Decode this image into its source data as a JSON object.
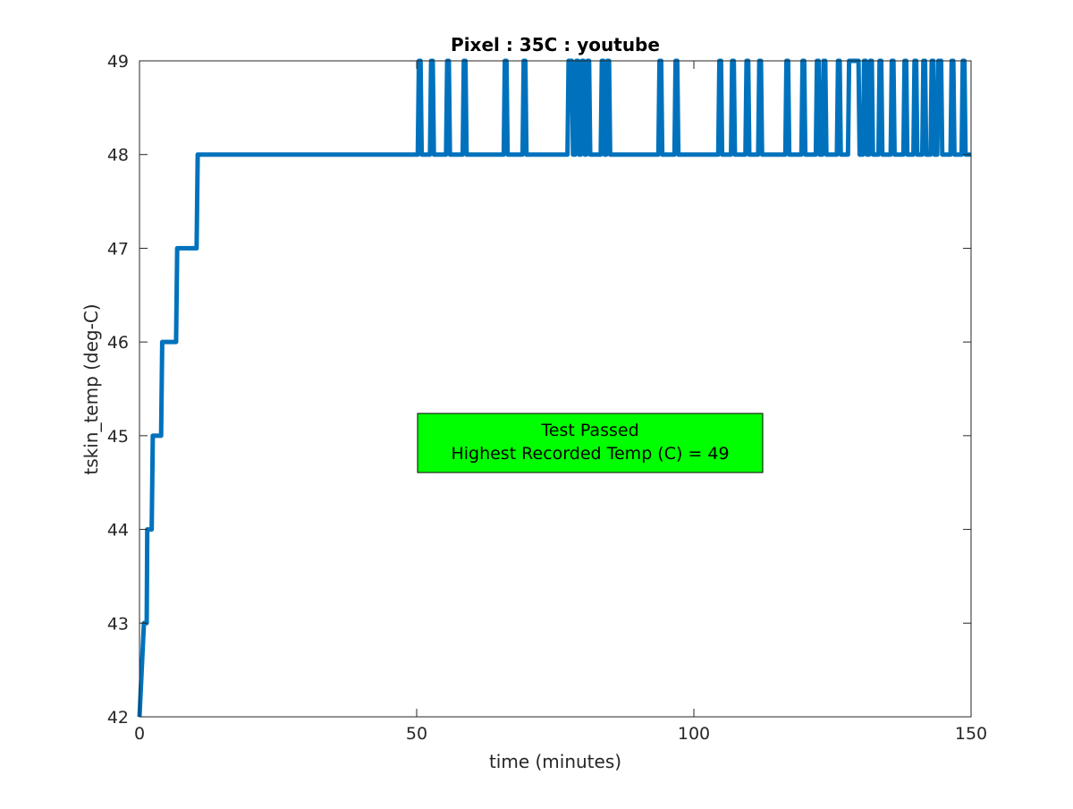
{
  "chart_data": {
    "type": "line",
    "title": "Pixel : 35C : youtube",
    "xlabel": "time (minutes)",
    "ylabel": "tskin_temp (deg-C)",
    "xlim": [
      0,
      150
    ],
    "ylim": [
      42,
      49
    ],
    "xticks": [
      0,
      50,
      100,
      150
    ],
    "yticks": [
      42,
      43,
      44,
      45,
      46,
      47,
      48,
      49
    ],
    "grid": false,
    "legend": "none",
    "series": [
      {
        "color": "#0072BD",
        "points": [
          [
            0,
            42
          ],
          [
            0.8,
            43
          ],
          [
            1.3,
            43
          ],
          [
            1.4,
            44
          ],
          [
            2.2,
            44
          ],
          [
            2.4,
            45
          ],
          [
            3.9,
            45
          ],
          [
            4.1,
            46
          ],
          [
            6.6,
            46
          ],
          [
            6.8,
            47
          ],
          [
            10.3,
            47
          ],
          [
            10.5,
            48
          ],
          [
            50.2,
            48
          ],
          [
            50.4,
            49
          ],
          [
            50.7,
            49
          ],
          [
            50.9,
            48
          ],
          [
            52.4,
            48
          ],
          [
            52.6,
            49
          ],
          [
            52.9,
            49
          ],
          [
            53.1,
            48
          ],
          [
            55.3,
            48
          ],
          [
            55.5,
            49
          ],
          [
            55.8,
            49
          ],
          [
            56.0,
            48
          ],
          [
            58.3,
            48
          ],
          [
            58.5,
            49
          ],
          [
            58.8,
            49
          ],
          [
            59.0,
            48
          ],
          [
            65.7,
            48
          ],
          [
            65.9,
            49
          ],
          [
            66.2,
            49
          ],
          [
            66.4,
            48
          ],
          [
            69.1,
            48
          ],
          [
            69.3,
            49
          ],
          [
            69.6,
            49
          ],
          [
            69.8,
            48
          ],
          [
            77.2,
            48
          ],
          [
            77.4,
            49
          ],
          [
            78.0,
            49
          ],
          [
            78.2,
            48
          ],
          [
            78.6,
            48
          ],
          [
            78.8,
            49
          ],
          [
            79.1,
            49
          ],
          [
            79.3,
            48
          ],
          [
            79.6,
            48
          ],
          [
            79.8,
            49
          ],
          [
            80.1,
            49
          ],
          [
            80.3,
            48
          ],
          [
            80.6,
            48
          ],
          [
            80.8,
            49
          ],
          [
            81.1,
            49
          ],
          [
            81.3,
            48
          ],
          [
            83.2,
            48
          ],
          [
            83.4,
            49
          ],
          [
            83.7,
            49
          ],
          [
            83.9,
            48
          ],
          [
            84.2,
            48
          ],
          [
            84.4,
            49
          ],
          [
            84.7,
            49
          ],
          [
            84.9,
            48
          ],
          [
            93.6,
            48
          ],
          [
            93.8,
            49
          ],
          [
            94.1,
            49
          ],
          [
            94.3,
            48
          ],
          [
            96.5,
            48
          ],
          [
            96.7,
            49
          ],
          [
            97.0,
            49
          ],
          [
            97.2,
            48
          ],
          [
            104.4,
            48
          ],
          [
            104.6,
            49
          ],
          [
            104.9,
            49
          ],
          [
            105.1,
            48
          ],
          [
            106.7,
            48
          ],
          [
            106.9,
            49
          ],
          [
            107.2,
            49
          ],
          [
            107.4,
            48
          ],
          [
            109.3,
            48
          ],
          [
            109.5,
            49
          ],
          [
            109.8,
            49
          ],
          [
            110.0,
            48
          ],
          [
            111.6,
            48
          ],
          [
            111.8,
            49
          ],
          [
            112.1,
            49
          ],
          [
            112.3,
            48
          ],
          [
            116.5,
            48
          ],
          [
            116.7,
            49
          ],
          [
            117.0,
            49
          ],
          [
            117.2,
            48
          ],
          [
            119.4,
            48
          ],
          [
            119.6,
            49
          ],
          [
            119.9,
            49
          ],
          [
            120.1,
            48
          ],
          [
            122.0,
            48
          ],
          [
            122.2,
            49
          ],
          [
            122.5,
            49
          ],
          [
            122.7,
            48
          ],
          [
            123.2,
            48
          ],
          [
            123.4,
            49
          ],
          [
            123.7,
            49
          ],
          [
            123.9,
            48
          ],
          [
            125.8,
            48
          ],
          [
            126.0,
            49
          ],
          [
            126.3,
            49
          ],
          [
            126.5,
            48
          ],
          [
            127.8,
            48
          ],
          [
            128.0,
            49
          ],
          [
            129.7,
            49
          ],
          [
            129.9,
            48
          ],
          [
            130.5,
            48
          ],
          [
            130.7,
            49
          ],
          [
            131.0,
            49
          ],
          [
            131.2,
            48
          ],
          [
            131.6,
            48
          ],
          [
            131.8,
            49
          ],
          [
            132.1,
            49
          ],
          [
            132.3,
            48
          ],
          [
            133.3,
            48
          ],
          [
            133.5,
            49
          ],
          [
            133.8,
            49
          ],
          [
            134.0,
            48
          ],
          [
            135.5,
            48
          ],
          [
            135.7,
            49
          ],
          [
            136.0,
            49
          ],
          [
            136.2,
            48
          ],
          [
            137.8,
            48
          ],
          [
            138.0,
            49
          ],
          [
            138.3,
            49
          ],
          [
            138.5,
            48
          ],
          [
            139.6,
            48
          ],
          [
            139.8,
            49
          ],
          [
            140.1,
            49
          ],
          [
            140.3,
            48
          ],
          [
            141.2,
            48
          ],
          [
            141.4,
            49
          ],
          [
            141.7,
            49
          ],
          [
            141.9,
            48
          ],
          [
            142.7,
            48
          ],
          [
            142.9,
            49
          ],
          [
            143.2,
            49
          ],
          [
            143.4,
            48
          ],
          [
            143.9,
            48
          ],
          [
            144.1,
            49
          ],
          [
            144.6,
            49
          ],
          [
            144.8,
            48
          ],
          [
            146.3,
            48
          ],
          [
            146.5,
            49
          ],
          [
            146.8,
            49
          ],
          [
            147.0,
            48
          ],
          [
            148.3,
            48
          ],
          [
            148.5,
            49
          ],
          [
            148.8,
            49
          ],
          [
            149.0,
            48
          ],
          [
            150,
            48
          ]
        ]
      }
    ],
    "annotation": {
      "lines": [
        "Test Passed",
        "Highest Recorded Temp (C) = 49"
      ],
      "background": "#00FF00",
      "border": "#000000"
    }
  }
}
